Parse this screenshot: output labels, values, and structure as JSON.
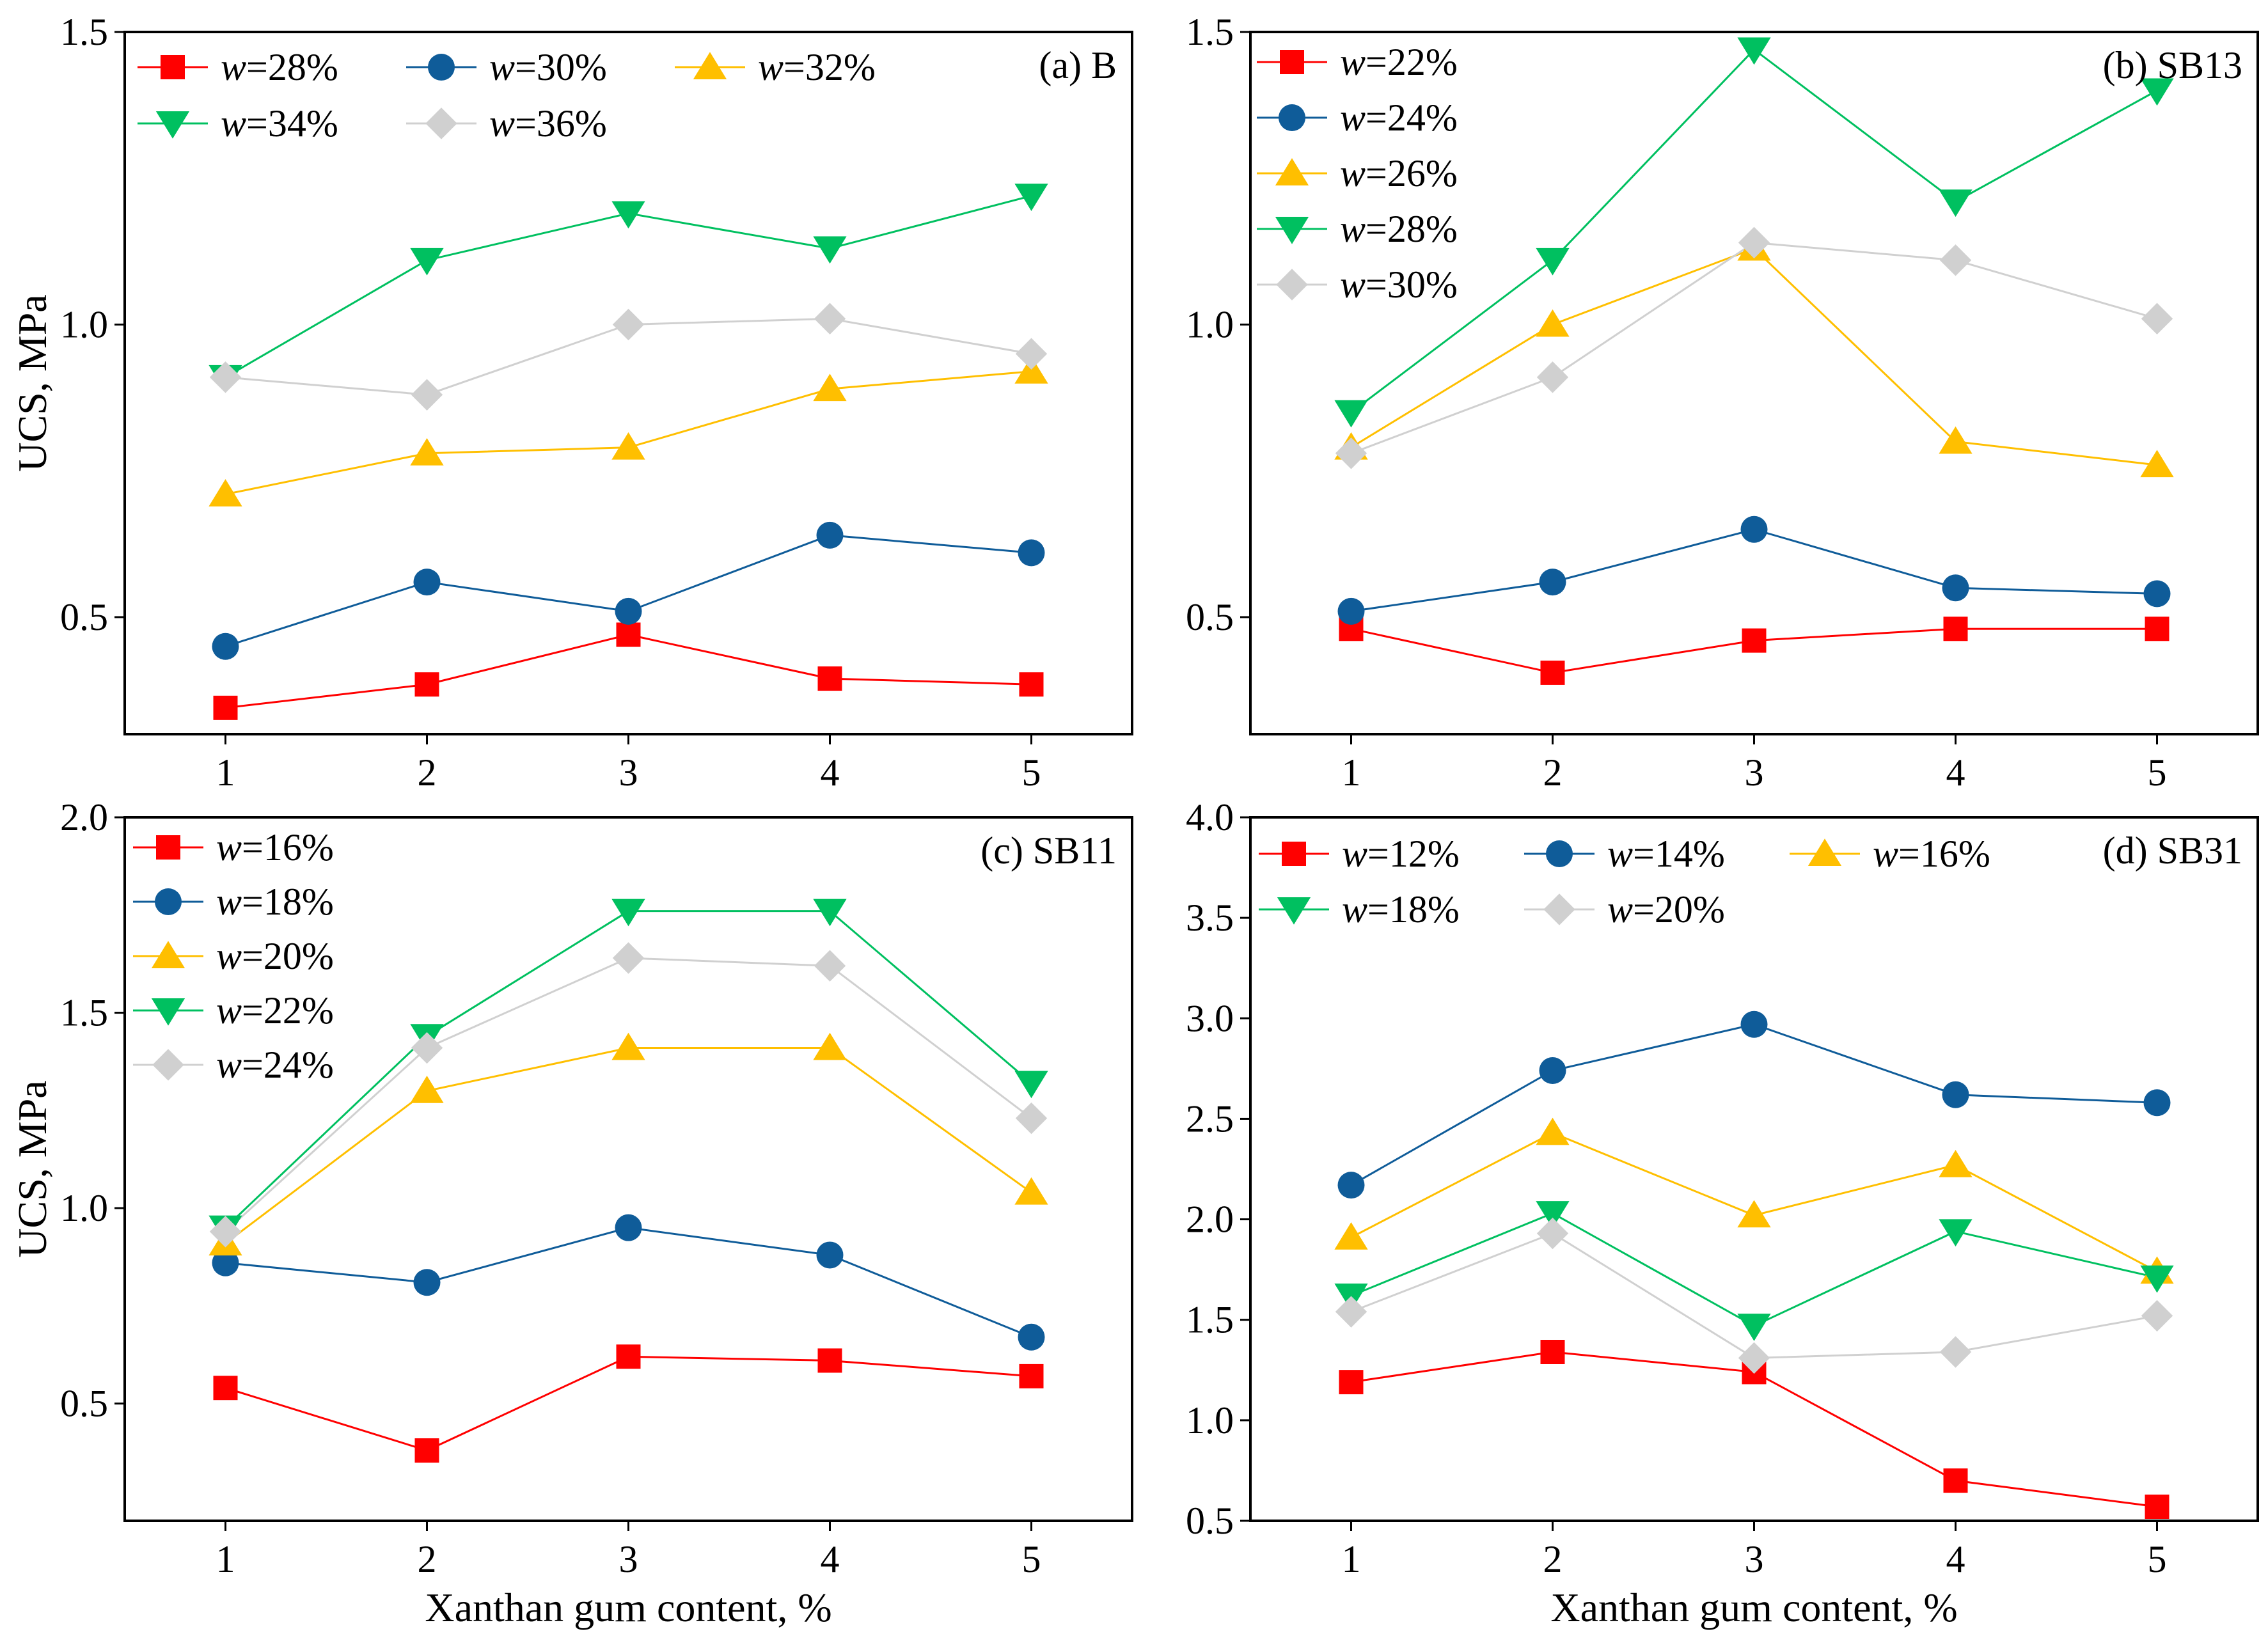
{
  "chart_data": [
    {
      "type": "line",
      "id": "a",
      "title": "(a) B",
      "xlabel": "",
      "ylabel": "UCS, MPa",
      "x": [
        1,
        2,
        3,
        4,
        5
      ],
      "xticks": [
        1,
        2,
        3,
        4,
        5
      ],
      "xlim": [
        0.5,
        5.5
      ],
      "ylim": [
        0.3,
        1.5
      ],
      "yticks": [
        0.5,
        1.0,
        1.5
      ],
      "ytick_labels": [
        "0.5",
        "1.0",
        "1.5"
      ],
      "legend_columns": 3,
      "series": [
        {
          "name": "w",
          "suffix": "=28%",
          "color": "#ff0000",
          "marker": "square",
          "values": [
            0.345,
            0.385,
            0.47,
            0.395,
            0.385
          ]
        },
        {
          "name": "w",
          "suffix": "=30%",
          "color": "#0f5c99",
          "marker": "circle",
          "values": [
            0.45,
            0.56,
            0.51,
            0.64,
            0.61
          ]
        },
        {
          "name": "w",
          "suffix": "=32%",
          "color": "#ffbf00",
          "marker": "triangle-up",
          "values": [
            0.71,
            0.78,
            0.79,
            0.89,
            0.92
          ]
        },
        {
          "name": "w",
          "suffix": "=34%",
          "color": "#00c060",
          "marker": "triangle-down",
          "values": [
            0.91,
            1.11,
            1.19,
            1.13,
            1.22
          ]
        },
        {
          "name": "w",
          "suffix": "=36%",
          "color": "#d0d0d0",
          "marker": "diamond",
          "values": [
            0.91,
            0.88,
            1.0,
            1.01,
            0.95
          ]
        }
      ]
    },
    {
      "type": "line",
      "id": "b",
      "title": "(b) SB13",
      "xlabel": "",
      "ylabel": "",
      "x": [
        1,
        2,
        3,
        4,
        5
      ],
      "xticks": [
        1,
        2,
        3,
        4,
        5
      ],
      "xlim": [
        0.5,
        5.5
      ],
      "ylim": [
        0.3,
        1.5
      ],
      "yticks": [
        0.5,
        1.0,
        1.5
      ],
      "ytick_labels": [
        "0.5",
        "1.0",
        "1.5"
      ],
      "legend_columns": 1,
      "series": [
        {
          "name": "w",
          "suffix": "=22%",
          "color": "#ff0000",
          "marker": "square",
          "values": [
            0.48,
            0.405,
            0.46,
            0.48,
            0.48
          ]
        },
        {
          "name": "w",
          "suffix": "=24%",
          "color": "#0f5c99",
          "marker": "circle",
          "values": [
            0.51,
            0.56,
            0.65,
            0.55,
            0.54
          ]
        },
        {
          "name": "w",
          "suffix": "=26%",
          "color": "#ffbf00",
          "marker": "triangle-up",
          "values": [
            0.79,
            1.0,
            1.13,
            0.8,
            0.76
          ]
        },
        {
          "name": "w",
          "suffix": "=28%",
          "color": "#00c060",
          "marker": "triangle-down",
          "values": [
            0.85,
            1.11,
            1.47,
            1.21,
            1.4
          ]
        },
        {
          "name": "w",
          "suffix": "=30%",
          "color": "#d0d0d0",
          "marker": "diamond",
          "values": [
            0.78,
            0.91,
            1.14,
            1.11,
            1.01
          ]
        }
      ]
    },
    {
      "type": "line",
      "id": "c",
      "title": "(c) SB11",
      "xlabel": "Xanthan gum content, %",
      "ylabel": "UCS, MPa",
      "x": [
        1,
        2,
        3,
        4,
        5
      ],
      "xticks": [
        1,
        2,
        3,
        4,
        5
      ],
      "xlim": [
        0.5,
        5.5
      ],
      "ylim": [
        0.2,
        2.0
      ],
      "yticks": [
        0.5,
        1.0,
        1.5,
        2.0
      ],
      "ytick_labels": [
        "0.5",
        "1.0",
        "1.5",
        "2.0"
      ],
      "legend_columns": 1,
      "series": [
        {
          "name": "w",
          "suffix": "=16%",
          "color": "#ff0000",
          "marker": "square",
          "values": [
            0.54,
            0.38,
            0.62,
            0.61,
            0.57
          ]
        },
        {
          "name": "w",
          "suffix": "=18%",
          "color": "#0f5c99",
          "marker": "circle",
          "values": [
            0.86,
            0.81,
            0.95,
            0.88,
            0.67
          ]
        },
        {
          "name": "w",
          "suffix": "=20%",
          "color": "#ffbf00",
          "marker": "triangle-up",
          "values": [
            0.91,
            1.3,
            1.41,
            1.41,
            1.04
          ]
        },
        {
          "name": "w",
          "suffix": "=22%",
          "color": "#00c060",
          "marker": "triangle-down",
          "values": [
            0.95,
            1.44,
            1.76,
            1.76,
            1.32
          ]
        },
        {
          "name": "w",
          "suffix": "=24%",
          "color": "#d0d0d0",
          "marker": "diamond",
          "values": [
            0.94,
            1.41,
            1.64,
            1.62,
            1.23
          ]
        }
      ]
    },
    {
      "type": "line",
      "id": "d",
      "title": "(d) SB31",
      "xlabel": "Xanthan gum content, %",
      "ylabel": "",
      "x": [
        1,
        2,
        3,
        4,
        5
      ],
      "xticks": [
        1,
        2,
        3,
        4,
        5
      ],
      "xlim": [
        0.5,
        5.5
      ],
      "ylim": [
        0.5,
        4.0
      ],
      "yticks": [
        0.5,
        1.0,
        1.5,
        2.0,
        2.5,
        3.0,
        3.5,
        4.0
      ],
      "ytick_labels": [
        "0.5",
        "1.0",
        "1.5",
        "2.0",
        "2.5",
        "3.0",
        "3.5",
        "4.0"
      ],
      "legend_columns": 3,
      "series": [
        {
          "name": "w",
          "suffix": "=12%",
          "color": "#ff0000",
          "marker": "square",
          "values": [
            1.19,
            1.34,
            1.24,
            0.7,
            0.57
          ]
        },
        {
          "name": "w",
          "suffix": "=14%",
          "color": "#0f5c99",
          "marker": "circle",
          "values": [
            2.17,
            2.74,
            2.97,
            2.62,
            2.58
          ]
        },
        {
          "name": "w",
          "suffix": "=16%",
          "color": "#ffbf00",
          "marker": "triangle-up",
          "values": [
            1.91,
            2.43,
            2.02,
            2.27,
            1.74
          ]
        },
        {
          "name": "w",
          "suffix": "=18%",
          "color": "#00c060",
          "marker": "triangle-down",
          "values": [
            1.62,
            2.03,
            1.47,
            1.94,
            1.71
          ]
        },
        {
          "name": "w",
          "suffix": "=20%",
          "color": "#d0d0d0",
          "marker": "diamond",
          "values": [
            1.54,
            1.93,
            1.31,
            1.34,
            1.52
          ]
        }
      ]
    }
  ]
}
